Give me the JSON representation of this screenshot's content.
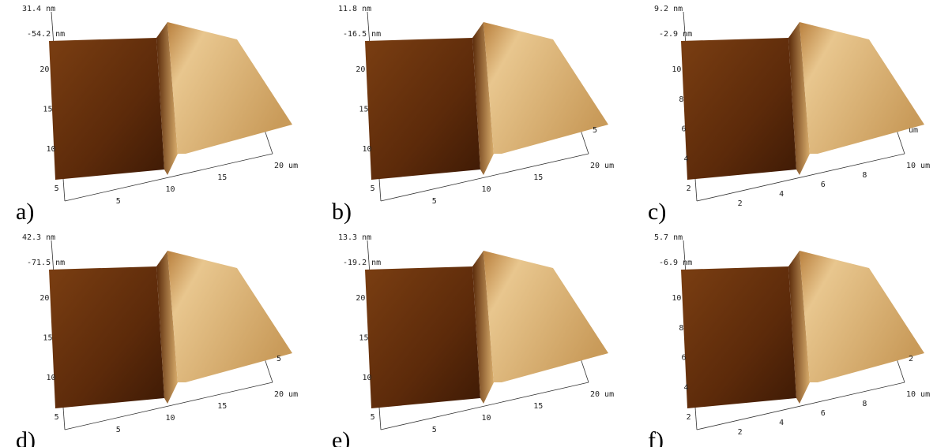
{
  "panels": [
    {
      "label": "a)",
      "z_max": "31.4 nm",
      "z_min": "-54.2 nm",
      "y_ticks": [
        "20",
        "15",
        "10",
        "5"
      ],
      "x_ticks": [
        "5",
        "10",
        "15",
        "20 um"
      ],
      "side_ticks": []
    },
    {
      "label": "b)",
      "z_max": "11.8 nm",
      "z_min": "-16.5 nm",
      "y_ticks": [
        "20",
        "15",
        "10",
        "5"
      ],
      "x_ticks": [
        "5",
        "10",
        "15",
        "20 um"
      ],
      "side_ticks": [
        "5"
      ]
    },
    {
      "label": "c)",
      "z_max": "9.2 nm",
      "z_min": "-2.9 nm",
      "y_ticks": [
        "10",
        "8",
        "6",
        "4",
        "2"
      ],
      "x_ticks": [
        "2",
        "4",
        "6",
        "8",
        "10 um"
      ],
      "side_ticks": [
        "um"
      ]
    },
    {
      "label": "d)",
      "z_max": "42.3 nm",
      "z_min": "-71.5 nm",
      "y_ticks": [
        "20",
        "15",
        "10",
        "5"
      ],
      "x_ticks": [
        "5",
        "10",
        "15",
        "20 um"
      ],
      "side_ticks": [
        "5"
      ]
    },
    {
      "label": "e)",
      "z_max": "13.3 nm",
      "z_min": "-19.2 nm",
      "y_ticks": [
        "20",
        "15",
        "10",
        "5"
      ],
      "x_ticks": [
        "5",
        "10",
        "15",
        "20 um"
      ],
      "side_ticks": []
    },
    {
      "label": "f)",
      "z_max": "5.7 nm",
      "z_min": "-6.9 nm",
      "y_ticks": [
        "10",
        "8",
        "6",
        "4",
        "2"
      ],
      "x_ticks": [
        "2",
        "4",
        "6",
        "8",
        "10 um"
      ],
      "side_ticks": [
        "2"
      ]
    }
  ]
}
